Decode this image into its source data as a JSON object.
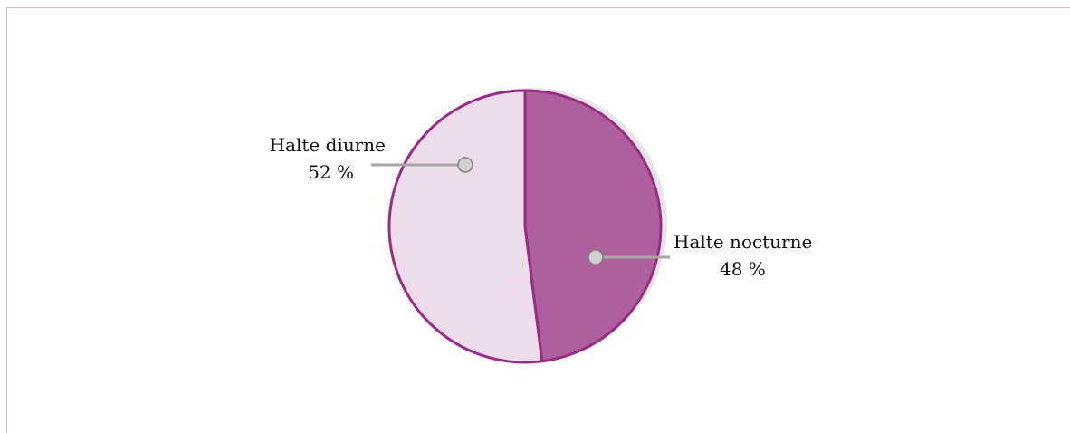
{
  "chart_data": {
    "type": "pie",
    "slices": [
      {
        "label": "Halte nocturne",
        "value": 48,
        "display": "48 %",
        "color": "#ae5f9e"
      },
      {
        "label": "Halte diurne",
        "value": 52,
        "display": "52 %",
        "color": "#eddce9"
      }
    ],
    "outline_color": "#9b2a88",
    "leader_color": "#a6a6a6",
    "marker_color": "#cfcfcf"
  }
}
